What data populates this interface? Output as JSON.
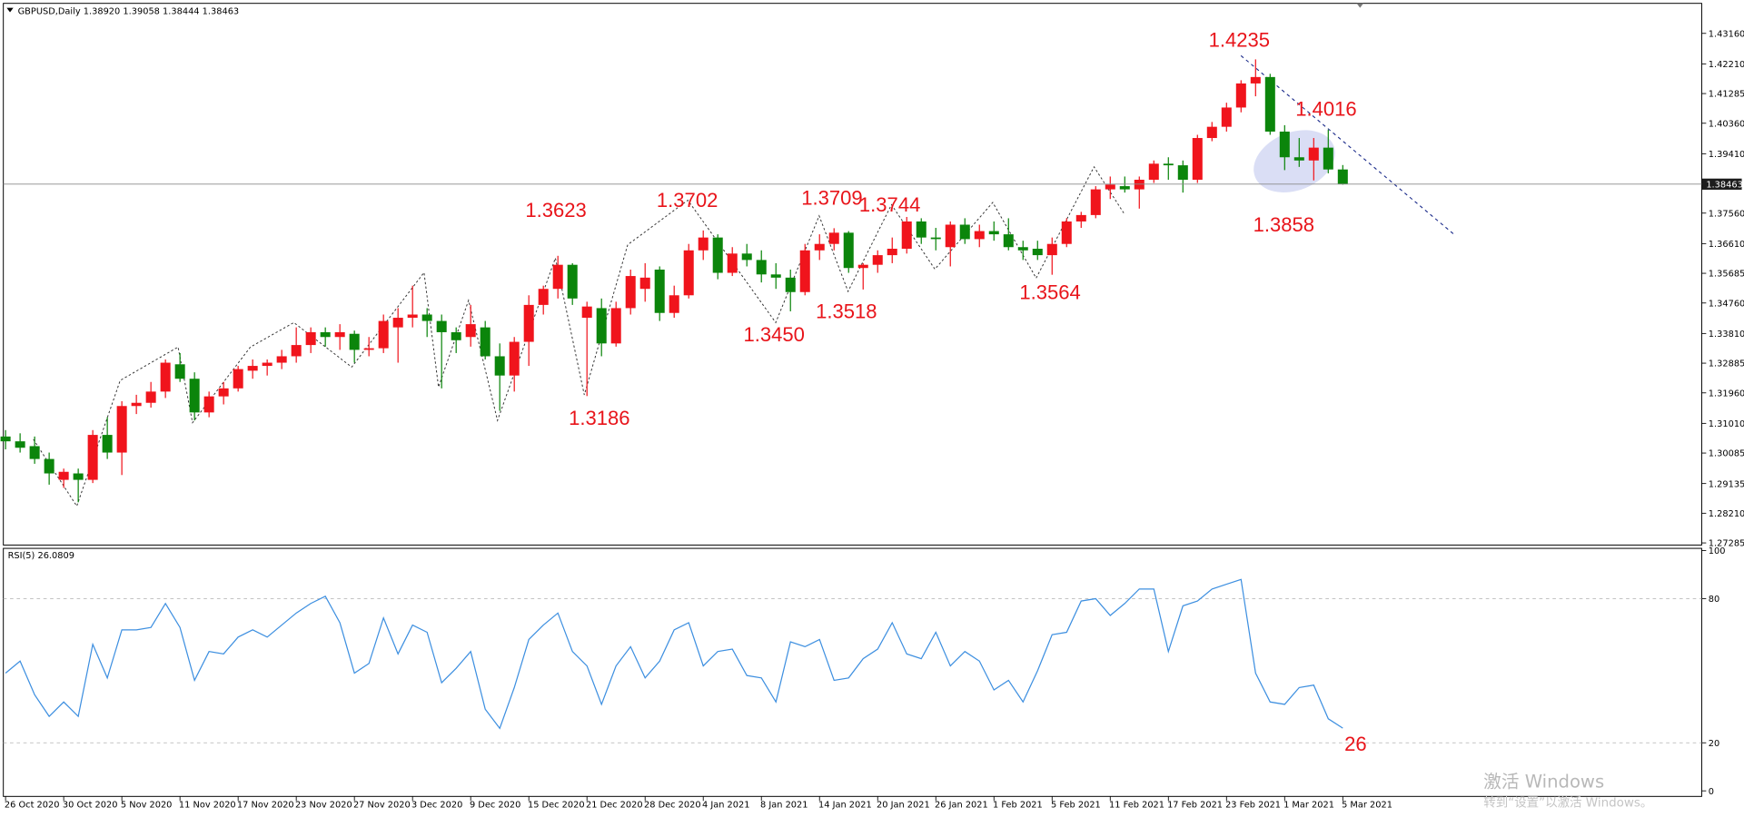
{
  "chart_data": [
    {
      "type": "candlestick",
      "title": "GBPUSD,Daily  1.38920 1.39058 1.38444 1.38463",
      "categories": [
        "26 Oct 2020",
        null,
        null,
        null,
        "30 Oct 2020",
        null,
        null,
        null,
        "5 Nov 2020",
        null,
        null,
        null,
        "11 Nov 2020",
        null,
        null,
        null,
        "17 Nov 2020",
        null,
        null,
        null,
        "23 Nov 2020",
        null,
        null,
        null,
        "27 Nov 2020",
        null,
        null,
        null,
        "3 Dec 2020",
        null,
        null,
        null,
        "9 Dec 2020",
        null,
        null,
        null,
        "15 Dec 2020",
        null,
        null,
        null,
        "21 Dec 2020",
        null,
        null,
        null,
        "28 Dec 2020",
        null,
        null,
        null,
        "4 Jan 2021",
        null,
        null,
        null,
        "8 Jan 2021",
        null,
        null,
        null,
        "14 Jan 2021",
        null,
        null,
        null,
        "20 Jan 2021",
        null,
        null,
        null,
        "26 Jan 2021",
        null,
        null,
        null,
        "1 Feb 2021",
        null,
        null,
        null,
        "5 Feb 2021",
        null,
        null,
        null,
        "11 Feb 2021",
        null,
        null,
        null,
        "17 Feb 2021",
        null,
        null,
        null,
        "23 Feb 2021",
        null,
        null,
        null,
        "1 Mar 2021",
        null,
        null,
        null,
        "5 Mar 2021"
      ],
      "open": [
        1.306,
        1.3045,
        1.303,
        1.299,
        1.2925,
        1.2945,
        1.2925,
        1.3065,
        1.301,
        1.3155,
        1.3165,
        1.32,
        1.3285,
        1.324,
        1.3135,
        1.3185,
        1.321,
        1.3265,
        1.328,
        1.329,
        1.331,
        1.3345,
        1.3385,
        1.337,
        1.338,
        1.333,
        1.3335,
        1.34,
        1.343,
        1.344,
        1.342,
        1.3385,
        1.337,
        1.34,
        1.331,
        1.325,
        1.3355,
        1.347,
        1.352,
        1.3595,
        1.343,
        1.346,
        1.335,
        1.346,
        1.352,
        1.358,
        1.3445,
        1.35,
        1.364,
        1.368,
        1.357,
        1.363,
        1.361,
        1.3565,
        1.3555,
        1.351,
        1.364,
        1.366,
        1.3695,
        1.3585,
        1.3595,
        1.3625,
        1.3645,
        1.373,
        1.368,
        1.365,
        1.372,
        1.3675,
        1.37,
        1.369,
        1.365,
        1.3645,
        1.3625,
        1.366,
        1.373,
        1.375,
        1.383,
        1.384,
        1.383,
        1.386,
        1.391,
        1.3905,
        1.386,
        1.399,
        1.4025,
        1.4085,
        1.416,
        1.418,
        1.401,
        1.393,
        1.392,
        1.396,
        1.3892
      ],
      "high": [
        1.308,
        1.307,
        1.306,
        1.301,
        1.296,
        1.296,
        1.308,
        1.312,
        1.317,
        1.319,
        1.323,
        1.33,
        1.332,
        1.326,
        1.32,
        1.323,
        1.328,
        1.33,
        1.33,
        1.333,
        1.34,
        1.34,
        1.34,
        1.341,
        1.339,
        1.337,
        1.344,
        1.346,
        1.353,
        1.346,
        1.344,
        1.34,
        1.347,
        1.342,
        1.335,
        1.337,
        1.35,
        1.353,
        1.3623,
        1.36,
        1.348,
        1.349,
        1.348,
        1.358,
        1.36,
        1.359,
        1.353,
        1.366,
        1.3702,
        1.369,
        1.365,
        1.366,
        1.364,
        1.36,
        1.358,
        1.366,
        1.369,
        1.3709,
        1.37,
        1.36,
        1.364,
        1.368,
        1.3744,
        1.374,
        1.371,
        1.373,
        1.374,
        1.372,
        1.373,
        1.374,
        1.367,
        1.367,
        1.368,
        1.374,
        1.376,
        1.384,
        1.387,
        1.387,
        1.387,
        1.392,
        1.393,
        1.392,
        1.4,
        1.404,
        1.41,
        1.417,
        1.4235,
        1.419,
        1.403,
        1.399,
        1.399,
        1.4016,
        1.39058
      ],
      "low": [
        1.302,
        1.301,
        1.2975,
        1.291,
        1.29,
        1.2855,
        1.2915,
        1.299,
        1.294,
        1.313,
        1.315,
        1.318,
        1.323,
        1.311,
        1.312,
        1.316,
        1.32,
        1.324,
        1.325,
        1.327,
        1.329,
        1.332,
        1.334,
        1.333,
        1.329,
        1.331,
        1.332,
        1.329,
        1.34,
        1.337,
        1.321,
        1.332,
        1.334,
        1.33,
        1.314,
        1.32,
        1.328,
        1.344,
        1.349,
        1.347,
        1.3186,
        1.331,
        1.334,
        1.344,
        1.348,
        1.342,
        1.343,
        1.349,
        1.361,
        1.355,
        1.356,
        1.359,
        1.354,
        1.352,
        1.345,
        1.35,
        1.361,
        1.364,
        1.357,
        1.3518,
        1.357,
        1.36,
        1.363,
        1.366,
        1.364,
        1.359,
        1.366,
        1.365,
        1.367,
        1.364,
        1.361,
        1.361,
        1.3564,
        1.365,
        1.371,
        1.374,
        1.38,
        1.382,
        1.377,
        1.385,
        1.386,
        1.382,
        1.385,
        1.398,
        1.401,
        1.407,
        1.412,
        1.4,
        1.389,
        1.39,
        1.3858,
        1.388,
        1.38444
      ],
      "close": [
        1.3045,
        1.3025,
        1.299,
        1.2945,
        1.295,
        1.2925,
        1.3065,
        1.301,
        1.3155,
        1.3165,
        1.32,
        1.329,
        1.324,
        1.3135,
        1.3185,
        1.321,
        1.327,
        1.328,
        1.329,
        1.331,
        1.3345,
        1.3385,
        1.337,
        1.3385,
        1.333,
        1.3335,
        1.342,
        1.343,
        1.344,
        1.342,
        1.3385,
        1.336,
        1.341,
        1.331,
        1.325,
        1.3355,
        1.347,
        1.352,
        1.3595,
        1.349,
        1.3465,
        1.335,
        1.346,
        1.356,
        1.3555,
        1.3445,
        1.35,
        1.364,
        1.368,
        1.357,
        1.363,
        1.361,
        1.3565,
        1.3555,
        1.351,
        1.364,
        1.366,
        1.3695,
        1.3585,
        1.3595,
        1.3625,
        1.3645,
        1.373,
        1.368,
        1.3675,
        1.372,
        1.3675,
        1.37,
        1.369,
        1.365,
        1.364,
        1.3625,
        1.366,
        1.373,
        1.375,
        1.383,
        1.3845,
        1.383,
        1.386,
        1.391,
        1.3905,
        1.386,
        1.399,
        1.4025,
        1.4085,
        1.416,
        1.418,
        1.401,
        1.393,
        1.392,
        1.396,
        1.3892,
        1.38463
      ],
      "up_color": "#f0141c",
      "down_color": "#0b850b",
      "ylim": [
        1.27219,
        1.44026
      ],
      "yticks": [
        {
          "value": 1.4316,
          "label": "1.43160"
        },
        {
          "value": 1.4221,
          "label": "1.42210"
        },
        {
          "value": 1.41285,
          "label": "1.41285"
        },
        {
          "value": 1.4036,
          "label": "1.40360"
        },
        {
          "value": 1.3941,
          "label": "1.39410"
        },
        {
          "value": 1.3756,
          "label": "1.37560"
        },
        {
          "value": 1.3661,
          "label": "1.36610"
        },
        {
          "value": 1.35685,
          "label": "1.35685"
        },
        {
          "value": 1.3476,
          "label": "1.34760"
        },
        {
          "value": 1.3381,
          "label": "1.33810"
        },
        {
          "value": 1.32885,
          "label": "1.32885"
        },
        {
          "value": 1.3196,
          "label": "1.31960"
        },
        {
          "value": 1.3101,
          "label": "1.31010"
        },
        {
          "value": 1.30085,
          "label": "1.30085"
        },
        {
          "value": 1.29135,
          "label": "1.29135"
        },
        {
          "value": 1.2821,
          "label": "1.28210"
        },
        {
          "value": 1.27285,
          "label": "1.27285"
        }
      ],
      "current_price": {
        "value": 1.38463,
        "label": "1.38463"
      },
      "annotations": [
        "1.4235",
        "1.4016",
        "1.3858",
        "1.3623",
        "1.3702",
        "1.3709",
        "1.3744",
        "1.3564",
        "1.3450",
        "1.3518",
        "1.3186"
      ]
    },
    {
      "type": "line",
      "title": "RSI(5) 26.0809",
      "series": [
        {
          "name": "RSI(5)",
          "color": "#3d8fe0",
          "values": [
            49,
            54,
            40,
            31,
            37,
            31,
            61,
            47,
            67,
            67,
            68,
            78,
            68,
            46,
            58,
            57,
            64,
            67,
            64,
            69,
            74,
            78,
            81,
            70,
            49,
            53,
            72,
            57,
            69,
            66,
            45,
            51,
            58,
            34,
            26,
            43,
            63,
            69,
            74,
            58,
            52,
            36,
            52,
            60,
            47,
            54,
            67,
            70,
            52,
            58,
            59,
            48,
            47,
            37,
            62,
            60,
            63,
            46,
            47,
            55,
            59,
            70,
            57,
            55,
            66,
            52,
            58,
            54,
            42,
            46,
            37,
            50,
            65,
            66,
            79,
            80,
            73,
            78,
            84,
            84,
            58,
            77,
            79,
            84,
            86,
            88,
            49,
            37,
            36,
            43,
            44,
            30,
            26.0809
          ]
        }
      ],
      "ylim": [
        0,
        100
      ],
      "yticks": [
        100,
        80,
        20,
        0
      ],
      "levels": [
        80,
        20
      ],
      "annotations": [
        "26"
      ]
    }
  ],
  "watermark": {
    "title": "激活 Windows",
    "subtitle": "转到“设置”以激活 Windows。"
  }
}
